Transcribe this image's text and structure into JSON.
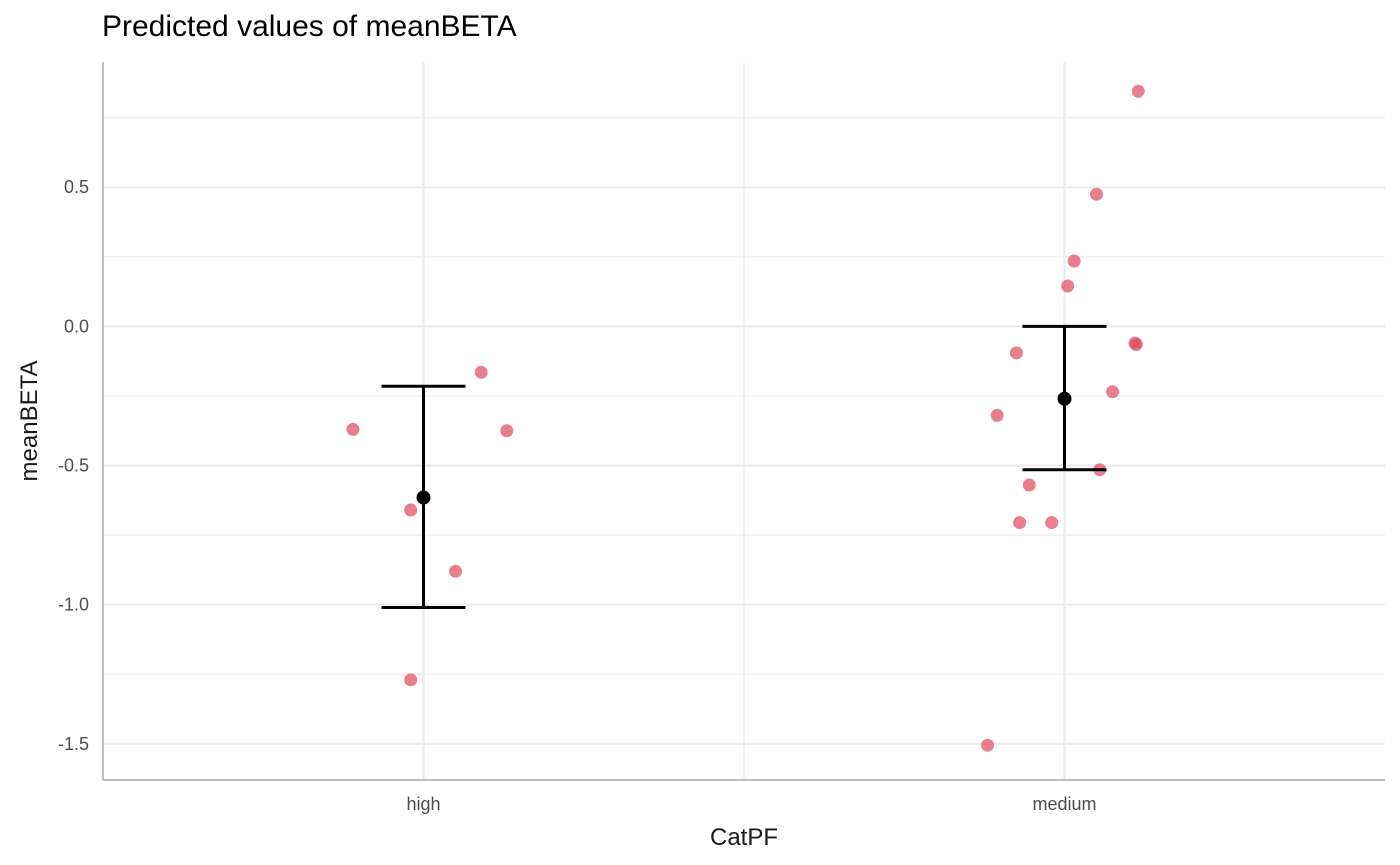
{
  "chart_data": {
    "type": "scatter",
    "title": "Predicted values of meanBETA",
    "xlabel": "CatPF",
    "ylabel": "meanBETA",
    "categories": [
      "high",
      "medium"
    ],
    "ylim": [
      -1.63,
      0.95
    ],
    "yticks": [
      0.5,
      0.0,
      -0.5,
      -1.0,
      -1.5
    ],
    "ytick_labels": [
      "0.5",
      "0.0",
      "-0.5",
      "-1.0",
      "-1.5"
    ],
    "grid": true,
    "predicted": [
      {
        "category": "high",
        "estimate": -0.615,
        "ci_low": -1.01,
        "ci_high": -0.215
      },
      {
        "category": "medium",
        "estimate": -0.26,
        "ci_low": -0.515,
        "ci_high": 0.0
      }
    ],
    "raw_points": [
      {
        "category": "high",
        "jitter": -0.11,
        "y": -0.37
      },
      {
        "category": "high",
        "jitter": 0.09,
        "y": -0.165
      },
      {
        "category": "high",
        "jitter": 0.13,
        "y": -0.375
      },
      {
        "category": "high",
        "jitter": -0.02,
        "y": -0.66
      },
      {
        "category": "high",
        "jitter": 0.05,
        "y": -0.88
      },
      {
        "category": "high",
        "jitter": -0.02,
        "y": -1.27
      },
      {
        "category": "medium",
        "jitter": 0.115,
        "y": 0.845
      },
      {
        "category": "medium",
        "jitter": 0.05,
        "y": 0.475
      },
      {
        "category": "medium",
        "jitter": 0.015,
        "y": 0.235
      },
      {
        "category": "medium",
        "jitter": 0.005,
        "y": 0.145
      },
      {
        "category": "medium",
        "jitter": -0.075,
        "y": -0.095
      },
      {
        "category": "medium",
        "jitter": 0.11,
        "y": -0.06
      },
      {
        "category": "medium",
        "jitter": 0.112,
        "y": -0.065
      },
      {
        "category": "medium",
        "jitter": 0.075,
        "y": -0.235
      },
      {
        "category": "medium",
        "jitter": -0.105,
        "y": -0.32
      },
      {
        "category": "medium",
        "jitter": 0.055,
        "y": -0.515
      },
      {
        "category": "medium",
        "jitter": -0.055,
        "y": -0.57
      },
      {
        "category": "medium",
        "jitter": -0.07,
        "y": -0.705
      },
      {
        "category": "medium",
        "jitter": -0.02,
        "y": -0.705
      },
      {
        "category": "medium",
        "jitter": -0.12,
        "y": -1.505
      }
    ],
    "colors": {
      "points": "#e0495b",
      "estimate": "#000000",
      "grid": "#ebebeb",
      "axis_line": "#bfbfbf"
    }
  }
}
